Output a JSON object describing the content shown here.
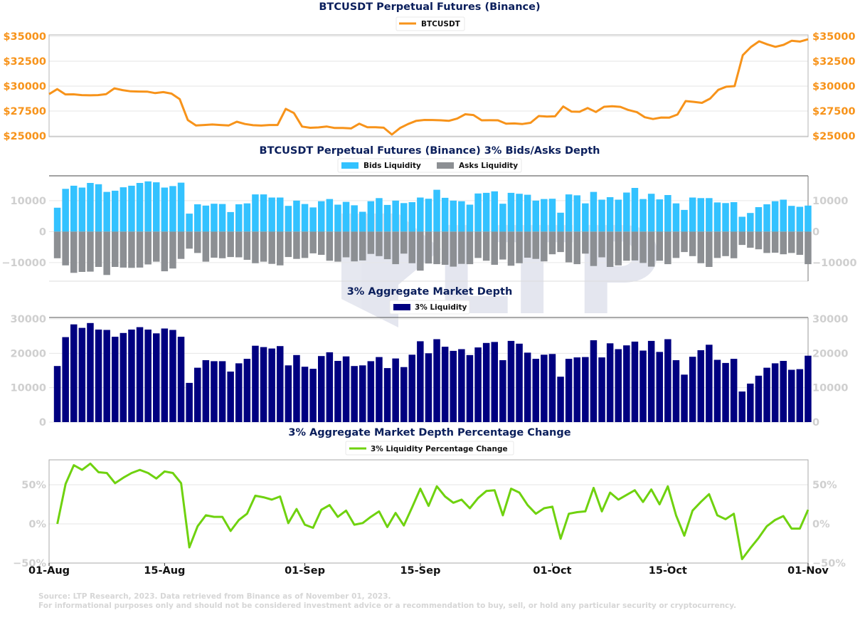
{
  "chart_data": [
    {
      "type": "line",
      "title": "BTCUSDT Perpetual Futures (Binance)",
      "legend": [
        "BTCUSDT"
      ],
      "legend_placement": "top-center",
      "x_start": "01-Aug",
      "x_end": "01-Nov",
      "ylim": [
        25000,
        35000
      ],
      "yticks": [
        25000,
        27500,
        30000,
        32500,
        35000
      ],
      "ytick_labels": [
        "$25000",
        "$27500",
        "$30000",
        "$32500",
        "$35000"
      ],
      "color": "#f7931a",
      "series": [
        {
          "name": "BTCUSDT",
          "values": [
            29200,
            29700,
            29170,
            29180,
            29100,
            29080,
            29100,
            29200,
            29780,
            29600,
            29480,
            29460,
            29450,
            29300,
            29400,
            29250,
            28700,
            26600,
            26050,
            26100,
            26150,
            26100,
            26050,
            26430,
            26200,
            26080,
            26040,
            26100,
            26100,
            27720,
            27300,
            25940,
            25820,
            25860,
            25950,
            25800,
            25800,
            25760,
            26230,
            25880,
            25880,
            25830,
            25140,
            25790,
            26200,
            26520,
            26610,
            26600,
            26570,
            26520,
            26740,
            27180,
            27100,
            26570,
            26580,
            26570,
            26230,
            26260,
            26200,
            26320,
            27000,
            26950,
            26970,
            27960,
            27450,
            27430,
            27800,
            27410,
            27930,
            27980,
            27920,
            27600,
            27400,
            26880,
            26700,
            26850,
            26840,
            27150,
            28500,
            28420,
            28320,
            28750,
            29630,
            29950,
            30000,
            33100,
            33930,
            34500,
            34190,
            33940,
            34140,
            34560,
            34470,
            34700
          ]
        }
      ]
    },
    {
      "type": "bar",
      "title": "BTCUSDT Perpetual Futures (Binance) 3% Bids/Asks Depth",
      "legend": [
        "Bids Liquidity",
        "Asks Liquidity"
      ],
      "legend_placement": "top-center",
      "ylim": [
        -16000,
        18000
      ],
      "yticks": [
        -10000,
        0,
        10000
      ],
      "ytick_labels": [
        "−10000",
        "0",
        "10000"
      ],
      "series": [
        {
          "name": "Bids Liquidity",
          "color": "#33c2ff",
          "values": [
            7700,
            13800,
            14800,
            14200,
            15700,
            15300,
            12800,
            13200,
            14300,
            14800,
            15700,
            16200,
            15900,
            14200,
            14700,
            15800,
            5800,
            8800,
            8400,
            9000,
            8900,
            6300,
            8800,
            9100,
            12000,
            12000,
            11000,
            11000,
            8300,
            10000,
            8900,
            7800,
            9800,
            10500,
            8700,
            9600,
            8500,
            6400,
            9800,
            10800,
            8600,
            10000,
            9200,
            9500,
            11000,
            10600,
            13500,
            10900,
            10000,
            9800,
            8700,
            12300,
            12500,
            13000,
            9000,
            12500,
            12200,
            11900,
            10000,
            10500,
            10600,
            6100,
            12000,
            11700,
            9100,
            12800,
            10300,
            11100,
            10300,
            12600,
            14100,
            10500,
            12200,
            10400,
            11800,
            9100,
            7000,
            11000,
            10800,
            10800,
            9400,
            9200,
            9500,
            4800,
            6000,
            7900,
            8800,
            9800,
            10300,
            8300,
            8000,
            8400
          ]
        },
        {
          "name": "Asks Liquidity",
          "color": "#8c8f93",
          "values": [
            -8600,
            -10900,
            -13300,
            -13000,
            -12900,
            -11400,
            -14000,
            -11400,
            -11600,
            -11700,
            -11600,
            -10600,
            -9700,
            -12800,
            -11900,
            -8800,
            -5500,
            -6900,
            -9700,
            -8400,
            -8600,
            -8200,
            -8300,
            -9100,
            -10200,
            -9700,
            -10400,
            -10900,
            -8200,
            -8800,
            -8500,
            -7000,
            -7500,
            -9400,
            -9700,
            -8300,
            -9600,
            -9300,
            -7200,
            -7900,
            -8900,
            -10500,
            -7100,
            -10200,
            -12600,
            -10300,
            -10500,
            -10700,
            -11300,
            -10400,
            -10500,
            -8500,
            -9400,
            -10700,
            -9000,
            -11000,
            -10200,
            -8400,
            -8800,
            -9600,
            -7300,
            -6600,
            -9900,
            -10500,
            -7100,
            -11100,
            -8300,
            -11400,
            -10900,
            -9400,
            -9300,
            -10100,
            -11300,
            -9400,
            -10500,
            -8500,
            -6600,
            -7900,
            -10200,
            -11400,
            -8500,
            -7900,
            -8600,
            -4300,
            -5200,
            -5700,
            -6900,
            -6800,
            -7300,
            -6900,
            -7500,
            -10500
          ]
        }
      ]
    },
    {
      "type": "bar",
      "title": "3% Aggregate Market Depth",
      "legend": [
        "3% Liquidity"
      ],
      "legend_placement": "top-center",
      "ylim": [
        0,
        30000
      ],
      "yticks": [
        0,
        10000,
        20000,
        30000
      ],
      "ytick_labels": [
        "0",
        "10000",
        "20000",
        "30000"
      ],
      "color": "#000080",
      "series": [
        {
          "name": "3% Liquidity",
          "values": [
            16300,
            24700,
            28400,
            27400,
            28800,
            26900,
            26800,
            24800,
            25900,
            26900,
            27600,
            26900,
            25800,
            27200,
            26800,
            24800,
            11400,
            15800,
            18000,
            17700,
            17700,
            14700,
            17100,
            18400,
            22200,
            21800,
            21400,
            22100,
            16500,
            19500,
            16100,
            15500,
            19200,
            20300,
            17800,
            19100,
            16300,
            16500,
            17700,
            18900,
            15700,
            18500,
            16000,
            19600,
            23500,
            20000,
            24100,
            21900,
            20700,
            21200,
            19500,
            21700,
            23000,
            23300,
            18000,
            23600,
            22800,
            20200,
            18400,
            19600,
            19800,
            13200,
            18400,
            18800,
            18900,
            23800,
            18800,
            22900,
            21200,
            22300,
            23400,
            20800,
            23600,
            20400,
            24100,
            18000,
            13800,
            19000,
            20900,
            22500,
            18100,
            17200,
            18400,
            8900,
            11200,
            13500,
            15800,
            17100,
            17800,
            15200,
            15400,
            19300
          ]
        }
      ]
    },
    {
      "type": "line",
      "title": "3% Aggregate Market Depth Percentage Change",
      "legend": [
        "3% Liquidity Percentage Change"
      ],
      "legend_placement": "top-center",
      "color": "#6fd20f",
      "ylim": [
        -50,
        80
      ],
      "yticks": [
        -50,
        0,
        50
      ],
      "ytick_labels": [
        "−50%",
        "0%",
        "50%"
      ],
      "xtick_labels": [
        "01-Aug",
        "15-Aug",
        "01-Sep",
        "15-Sep",
        "01-Oct",
        "15-Oct",
        "01-Nov"
      ],
      "series": [
        {
          "name": "3% Liquidity Percentage Change",
          "values": [
            0,
            51,
            75,
            69,
            77,
            66,
            65,
            52,
            59,
            65,
            69,
            65,
            58,
            67,
            65,
            52,
            -30,
            -3,
            11,
            9,
            9,
            -9,
            5,
            13,
            36,
            34,
            31,
            35,
            1,
            19,
            -1,
            -5,
            18,
            24,
            9,
            17,
            -1,
            1,
            9,
            16,
            -4,
            14,
            -2,
            21,
            45,
            23,
            48,
            35,
            27,
            31,
            20,
            33,
            42,
            43,
            11,
            45,
            40,
            24,
            13,
            20,
            22,
            -19,
            13,
            15,
            16,
            46,
            16,
            40,
            31,
            37,
            43,
            28,
            44,
            25,
            48,
            11,
            -15,
            17,
            28,
            38,
            11,
            6,
            13,
            -45,
            -31,
            -18,
            -3,
            5,
            10,
            -6,
            -6,
            18
          ]
        }
      ]
    }
  ],
  "footer": {
    "source": "Source: LTP Research, 2023. Data retrieved from Binance as of November 01, 2023.",
    "disclaimer": "For informational purposes only and should not be considered investment advice or a recommendation to buy, sell, or hold any particular security or cryptocurrency."
  },
  "watermark": {
    "text": "LTP"
  }
}
